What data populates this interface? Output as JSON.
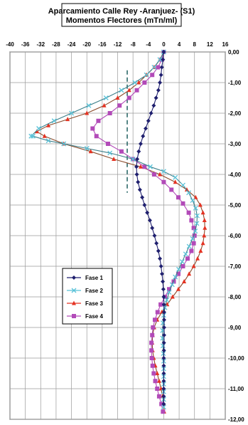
{
  "chart_data": {
    "type": "line",
    "title_lines": [
      "Aparcamiento Calle Rey -Aranjuez- (S1)",
      "Momentos Flectores (mTn/ml)"
    ],
    "x_ticks": [
      "-40",
      "-36",
      "-32",
      "-28",
      "-24",
      "-20",
      "-16",
      "-12",
      "-8",
      "-4",
      "0",
      "4",
      "8",
      "12",
      "16"
    ],
    "y_ticks": [
      "0,00",
      "-1,00",
      "-2,00",
      "-3,00",
      "-4,00",
      "-5,00",
      "-6,00",
      "-7,00",
      "-8,00",
      "-9,00",
      "-10,00",
      "-11,00",
      "-12,00"
    ],
    "xlim": [
      -40,
      16
    ],
    "ylim": [
      -12,
      0
    ],
    "grid": true,
    "legend_position": "lower-left",
    "series": [
      {
        "name": "Fase 1",
        "color": "#1f1f6e",
        "marker": "diamond",
        "points": [
          [
            0,
            0
          ],
          [
            -0.2,
            -0.25
          ],
          [
            -0.5,
            -0.5
          ],
          [
            -0.7,
            -0.75
          ],
          [
            -1,
            -1
          ],
          [
            -1.4,
            -1.25
          ],
          [
            -2,
            -1.5
          ],
          [
            -2.6,
            -1.75
          ],
          [
            -3.3,
            -2
          ],
          [
            -4,
            -2.25
          ],
          [
            -4.7,
            -2.5
          ],
          [
            -5.4,
            -2.75
          ],
          [
            -6,
            -3
          ],
          [
            -6.5,
            -3.25
          ],
          [
            -6.9,
            -3.5
          ],
          [
            -7.1,
            -3.75
          ],
          [
            -7,
            -4
          ],
          [
            -6.7,
            -4.25
          ],
          [
            -6.2,
            -4.5
          ],
          [
            -5.6,
            -4.75
          ],
          [
            -5,
            -5
          ],
          [
            -4.3,
            -5.25
          ],
          [
            -3.6,
            -5.5
          ],
          [
            -3,
            -5.75
          ],
          [
            -2.4,
            -6
          ],
          [
            -1.9,
            -6.25
          ],
          [
            -1.4,
            -6.5
          ],
          [
            -1,
            -6.75
          ],
          [
            -0.7,
            -7
          ],
          [
            -0.45,
            -7.25
          ],
          [
            -0.25,
            -7.5
          ],
          [
            -0.1,
            -7.75
          ],
          [
            0,
            -8
          ],
          [
            0.05,
            -8.25
          ],
          [
            0.1,
            -8.5
          ],
          [
            0.1,
            -8.75
          ],
          [
            0.1,
            -9
          ],
          [
            0.1,
            -9.25
          ],
          [
            0.05,
            -9.5
          ],
          [
            0.05,
            -9.75
          ],
          [
            0,
            -10
          ],
          [
            0,
            -10.25
          ],
          [
            0,
            -10.5
          ],
          [
            0,
            -10.75
          ],
          [
            0,
            -11
          ],
          [
            0,
            -11.25
          ],
          [
            0,
            -11.5
          ]
        ]
      },
      {
        "name": "Fase 2",
        "color": "#59c2d8",
        "marker": "x",
        "points": [
          [
            0,
            0
          ],
          [
            -1,
            -0.25
          ],
          [
            -2.5,
            -0.5
          ],
          [
            -4.5,
            -0.75
          ],
          [
            -7.5,
            -1
          ],
          [
            -11,
            -1.25
          ],
          [
            -15,
            -1.5
          ],
          [
            -19.5,
            -1.75
          ],
          [
            -24,
            -2
          ],
          [
            -28.5,
            -2.25
          ],
          [
            -32.5,
            -2.5
          ],
          [
            -34.5,
            -2.75
          ],
          [
            -34,
            -2.75
          ],
          [
            -30,
            -2.9
          ],
          [
            -26,
            -3
          ],
          [
            -20,
            -3.15
          ],
          [
            -14,
            -3.3
          ],
          [
            -8,
            -3.5
          ],
          [
            -3.5,
            -3.75
          ],
          [
            0,
            -3.9
          ],
          [
            3,
            -4.1
          ],
          [
            5,
            -4.35
          ],
          [
            6.5,
            -4.6
          ],
          [
            7.5,
            -4.85
          ],
          [
            8.3,
            -5.1
          ],
          [
            8.7,
            -5.35
          ],
          [
            8.6,
            -5.6
          ],
          [
            8.2,
            -5.85
          ],
          [
            7.5,
            -6.1
          ],
          [
            6.6,
            -6.35
          ],
          [
            5.7,
            -6.6
          ],
          [
            4.8,
            -6.85
          ],
          [
            3.9,
            -7.1
          ],
          [
            3,
            -7.35
          ],
          [
            2.2,
            -7.6
          ],
          [
            1.4,
            -7.85
          ],
          [
            0.8,
            -8.1
          ],
          [
            0.3,
            -8.35
          ],
          [
            0,
            -8.6
          ],
          [
            -0.2,
            -8.85
          ],
          [
            -0.3,
            -9.1
          ],
          [
            -0.3,
            -9.35
          ],
          [
            -0.2,
            -9.6
          ],
          [
            -0.1,
            -9.85
          ],
          [
            0,
            -10.1
          ],
          [
            0,
            -10.35
          ],
          [
            0,
            -10.6
          ],
          [
            0,
            -10.85
          ],
          [
            0,
            -11.1
          ],
          [
            0,
            -11.35
          ],
          [
            0,
            -11.6
          ]
        ]
      },
      {
        "name": "Fase 3",
        "color": "#e53222",
        "marker": "triangle",
        "points": [
          [
            0,
            0
          ],
          [
            -1,
            -0.25
          ],
          [
            -2.5,
            -0.5
          ],
          [
            -4.5,
            -0.75
          ],
          [
            -6.5,
            -1
          ],
          [
            -9,
            -1.25
          ],
          [
            -12,
            -1.5
          ],
          [
            -15.5,
            -1.75
          ],
          [
            -20,
            -2
          ],
          [
            -25,
            -2.2
          ],
          [
            -30,
            -2.4
          ],
          [
            -33,
            -2.6
          ],
          [
            -31,
            -2.75
          ],
          [
            -26,
            -3
          ],
          [
            -19,
            -3.25
          ],
          [
            -13,
            -3.5
          ],
          [
            -6,
            -3.75
          ],
          [
            -1,
            -4
          ],
          [
            3,
            -4.25
          ],
          [
            6,
            -4.5
          ],
          [
            8.3,
            -4.75
          ],
          [
            9.5,
            -5
          ],
          [
            10.2,
            -5.25
          ],
          [
            10.6,
            -5.5
          ],
          [
            10.7,
            -5.75
          ],
          [
            10.5,
            -6
          ],
          [
            10.2,
            -6.25
          ],
          [
            9.6,
            -6.5
          ],
          [
            8.8,
            -6.75
          ],
          [
            7.8,
            -7
          ],
          [
            6.6,
            -7.25
          ],
          [
            5.3,
            -7.5
          ],
          [
            3.8,
            -7.75
          ],
          [
            2.3,
            -8
          ],
          [
            0.9,
            -8.25
          ],
          [
            -0.5,
            -8.5
          ],
          [
            -1.7,
            -8.75
          ],
          [
            -2.5,
            -9
          ],
          [
            -2.9,
            -9.25
          ],
          [
            -3,
            -9.5
          ],
          [
            -2.9,
            -9.75
          ],
          [
            -2.6,
            -10
          ],
          [
            -2.2,
            -10.25
          ],
          [
            -1.7,
            -10.5
          ],
          [
            -1.2,
            -10.75
          ],
          [
            -0.7,
            -11
          ],
          [
            -0.3,
            -11.25
          ],
          [
            0,
            -11.5
          ],
          [
            0.1,
            -11.75
          ]
        ]
      },
      {
        "name": "Fase 4",
        "color": "#b24ab8",
        "marker": "square",
        "points": [
          [
            0,
            0
          ],
          [
            -0.5,
            -0.25
          ],
          [
            -1.5,
            -0.5
          ],
          [
            -3,
            -0.75
          ],
          [
            -5,
            -1
          ],
          [
            -7,
            -1.25
          ],
          [
            -9,
            -1.5
          ],
          [
            -11.5,
            -1.75
          ],
          [
            -14,
            -2
          ],
          [
            -17,
            -2.25
          ],
          [
            -18.5,
            -2.5
          ],
          [
            -17.5,
            -2.75
          ],
          [
            -14.5,
            -3
          ],
          [
            -11,
            -3.25
          ],
          [
            -8,
            -3.5
          ],
          [
            -5,
            -3.75
          ],
          [
            -2.5,
            -4
          ],
          [
            0,
            -4.25
          ],
          [
            2,
            -4.5
          ],
          [
            3.8,
            -4.75
          ],
          [
            5,
            -4.95
          ],
          [
            6.5,
            -5.25
          ],
          [
            7.2,
            -5.5
          ],
          [
            7.8,
            -5.75
          ],
          [
            8,
            -6
          ],
          [
            7.8,
            -6.25
          ],
          [
            7.2,
            -6.5
          ],
          [
            6.2,
            -6.75
          ],
          [
            5,
            -7
          ],
          [
            3.8,
            -7.25
          ],
          [
            2.6,
            -7.5
          ],
          [
            1.4,
            -7.75
          ],
          [
            0.3,
            -8
          ],
          [
            -0.8,
            -8.25
          ],
          [
            -1.6,
            -8.5
          ],
          [
            -2.3,
            -8.75
          ],
          [
            -2.8,
            -9
          ],
          [
            -3,
            -9.25
          ],
          [
            -3.2,
            -9.5
          ],
          [
            -3.2,
            -9.75
          ],
          [
            -3.1,
            -10
          ],
          [
            -2.9,
            -10.25
          ],
          [
            -2.6,
            -10.5
          ],
          [
            -2.2,
            -10.75
          ],
          [
            -1.7,
            -11
          ],
          [
            -1.2,
            -11.25
          ],
          [
            -0.6,
            -11.5
          ],
          [
            -0.2,
            -11.75
          ]
        ]
      }
    ],
    "reference_line": {
      "x": -9.5,
      "y_from": -0.6,
      "y_to": -4.6,
      "color": "#1f5f5f",
      "style": "dashed"
    }
  }
}
